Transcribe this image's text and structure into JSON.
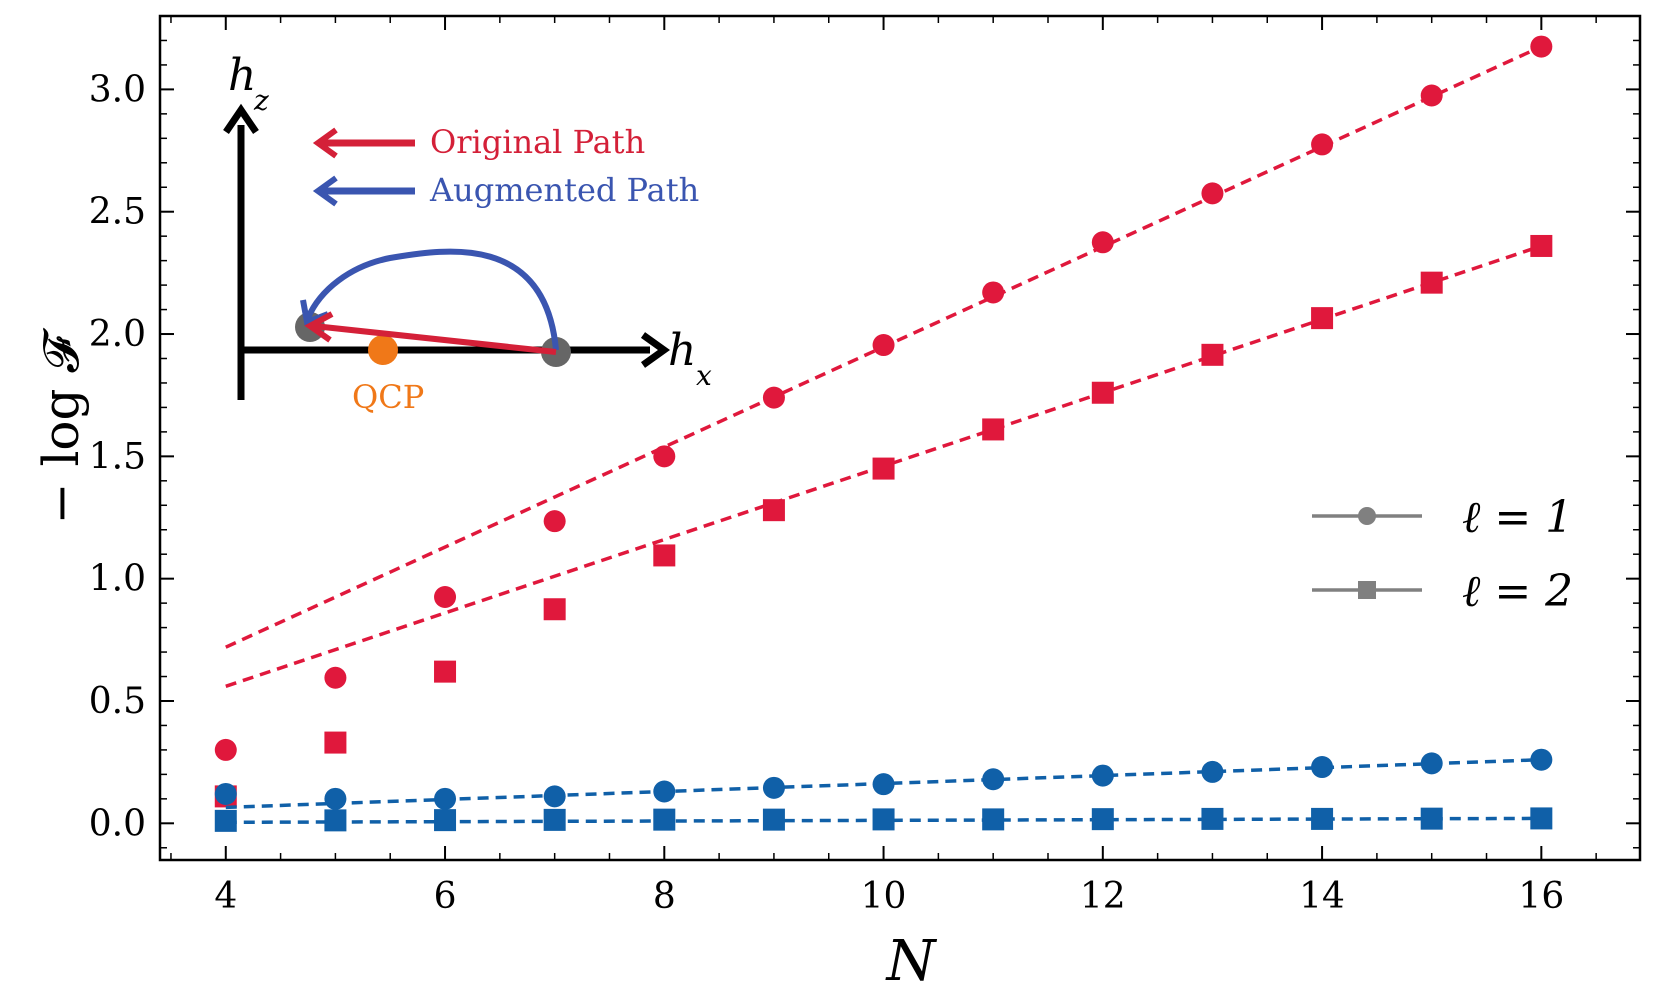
{
  "chart_data": {
    "type": "scatter",
    "title": "",
    "xlabel": "N",
    "ylabel": "− log 𝓕",
    "xlim": [
      3.4,
      16.9
    ],
    "ylim": [
      -0.15,
      3.3
    ],
    "x_ticks": [
      4,
      6,
      8,
      10,
      12,
      14,
      16
    ],
    "x_tick_labels": [
      "4",
      "6",
      "8",
      "10",
      "12",
      "14",
      "16"
    ],
    "y_ticks": [
      0.0,
      0.5,
      1.0,
      1.5,
      2.0,
      2.5,
      3.0
    ],
    "y_tick_labels": [
      "0.0",
      "0.5",
      "1.0",
      "1.5",
      "2.0",
      "2.5",
      "3.0"
    ],
    "grid": false,
    "x": [
      4,
      5,
      6,
      7,
      8,
      9,
      10,
      11,
      12,
      13,
      14,
      15,
      16
    ],
    "series": [
      {
        "name": "Original Path, ℓ = 1",
        "color": "#e0183c",
        "marker": "circle",
        "values": [
          0.3,
          0.595,
          0.925,
          1.235,
          1.5,
          1.74,
          1.955,
          2.17,
          2.375,
          2.575,
          2.775,
          2.975,
          3.175
        ],
        "fit": {
          "x": [
            4,
            16
          ],
          "y": [
            0.72,
            3.175
          ]
        }
      },
      {
        "name": "Original Path, ℓ = 2",
        "color": "#e0183c",
        "marker": "square",
        "values": [
          0.11,
          0.33,
          0.62,
          0.875,
          1.095,
          1.28,
          1.45,
          1.61,
          1.76,
          1.915,
          2.065,
          2.21,
          2.36
        ],
        "fit": {
          "x": [
            4,
            16
          ],
          "y": [
            0.56,
            2.36
          ]
        }
      },
      {
        "name": "Augmented Path, ℓ = 1",
        "color": "#1060a8",
        "marker": "circle",
        "values": [
          0.12,
          0.1,
          0.1,
          0.11,
          0.13,
          0.145,
          0.16,
          0.18,
          0.195,
          0.21,
          0.23,
          0.245,
          0.26
        ],
        "fit": {
          "x": [
            4,
            16
          ],
          "y": [
            0.065,
            0.26
          ]
        }
      },
      {
        "name": "Augmented Path, ℓ = 2",
        "color": "#1060a8",
        "marker": "square",
        "values": [
          0.01,
          0.012,
          0.013,
          0.014,
          0.015,
          0.015,
          0.016,
          0.016,
          0.017,
          0.018,
          0.018,
          0.019,
          0.02
        ],
        "fit": {
          "x": [
            4,
            16
          ],
          "y": [
            0.004,
            0.02
          ]
        }
      }
    ],
    "legend": {
      "placement": "center-right",
      "color": "#808080",
      "entries": [
        {
          "marker": "circle",
          "label": "ℓ = 1"
        },
        {
          "marker": "square",
          "label": "ℓ = 2"
        }
      ]
    },
    "inset": {
      "axis_x_label": "h",
      "axis_x_sub": "x",
      "axis_y_label": "h",
      "axis_y_sub": "z",
      "original_label": "Original Path",
      "original_color": "#d42038",
      "augmented_label": "Augmented Path",
      "augmented_color": "#3a55b0",
      "qcp_label": "QCP",
      "qcp_color": "#f07818",
      "node_color": "#666666"
    }
  }
}
